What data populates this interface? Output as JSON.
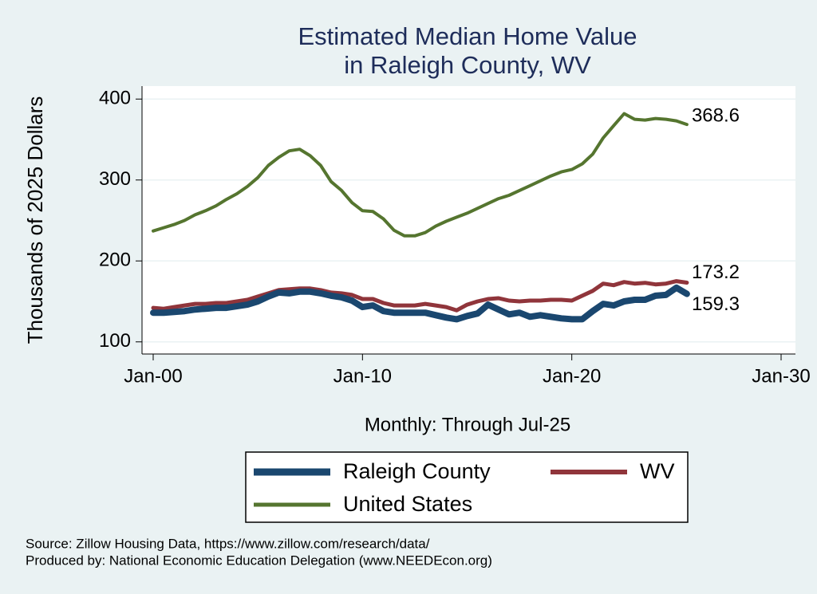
{
  "chart_data": {
    "type": "line",
    "title": [
      "Estimated Median Home Value",
      "in Raleigh County, WV"
    ],
    "ylabel": "Thousands of 2025 Dollars",
    "xlabel": "Monthly: Through Jul-25",
    "x": [
      "Jan-00",
      "Jul-00",
      "Jan-01",
      "Jul-01",
      "Jan-02",
      "Jul-02",
      "Jan-03",
      "Jul-03",
      "Jan-04",
      "Jul-04",
      "Jan-05",
      "Jul-05",
      "Jan-06",
      "Jul-06",
      "Jan-07",
      "Jul-07",
      "Jan-08",
      "Jul-08",
      "Jan-09",
      "Jul-09",
      "Jan-10",
      "Jul-10",
      "Jan-11",
      "Jul-11",
      "Jan-12",
      "Jul-12",
      "Jan-13",
      "Jul-13",
      "Jan-14",
      "Jul-14",
      "Jan-15",
      "Jul-15",
      "Jan-16",
      "Jul-16",
      "Jan-17",
      "Jul-17",
      "Jan-18",
      "Jul-18",
      "Jan-19",
      "Jul-19",
      "Jan-20",
      "Jul-20",
      "Jan-21",
      "Jul-21",
      "Jan-22",
      "Jul-22",
      "Jan-23",
      "Jul-23",
      "Jan-24",
      "Jul-24",
      "Jan-25",
      "Jul-25"
    ],
    "series": [
      {
        "name": "Raleigh County",
        "color": "#1a476f",
        "width": 8,
        "values": [
          136,
          136,
          137,
          138,
          140,
          141,
          142,
          142,
          144,
          146,
          150,
          156,
          161,
          160,
          162,
          162,
          160,
          157,
          155,
          151,
          143,
          145,
          138,
          136,
          136,
          136,
          136,
          133,
          130,
          128,
          132,
          135,
          146,
          140,
          134,
          136,
          131,
          133,
          131,
          129,
          128,
          128,
          138,
          147,
          145,
          150,
          152,
          152,
          157,
          158,
          167,
          159.3
        ]
      },
      {
        "name": "WV",
        "color": "#90353b",
        "width": 5,
        "values": [
          142,
          141,
          143,
          145,
          147,
          147,
          148,
          148,
          150,
          152,
          156,
          160,
          164,
          165,
          166,
          166,
          164,
          161,
          160,
          158,
          153,
          153,
          148,
          145,
          145,
          145,
          147,
          145,
          143,
          139,
          146,
          150,
          153,
          154,
          151,
          150,
          151,
          151,
          152,
          152,
          151,
          157,
          163,
          172,
          170,
          174,
          172,
          173,
          171,
          172,
          175,
          173.2
        ]
      },
      {
        "name": "United States",
        "color": "#55752f",
        "width": 4,
        "values": [
          237,
          241,
          245,
          250,
          257,
          262,
          268,
          276,
          283,
          292,
          303,
          318,
          328,
          336,
          338,
          330,
          318,
          298,
          287,
          272,
          262,
          261,
          252,
          238,
          231,
          231,
          235,
          243,
          249,
          254,
          259,
          265,
          271,
          277,
          281,
          287,
          293,
          299,
          305,
          310,
          313,
          320,
          332,
          352,
          367,
          382,
          375,
          374,
          376,
          375,
          373,
          368.6
        ]
      }
    ],
    "xlim": [
      "Jan-00",
      "Jan-30"
    ],
    "xticks": [
      "Jan-00",
      "Jan-10",
      "Jan-20",
      "Jan-30"
    ],
    "ylim": [
      85,
      416
    ],
    "yticks": [
      100,
      200,
      300,
      400
    ],
    "grid": true,
    "footnotes": [
      "Source: Zillow Housing Data, https://www.zillow.com/research/data/",
      "Produced by: National Economic Education Delegation (www.NEEDEcon.org)"
    ]
  }
}
